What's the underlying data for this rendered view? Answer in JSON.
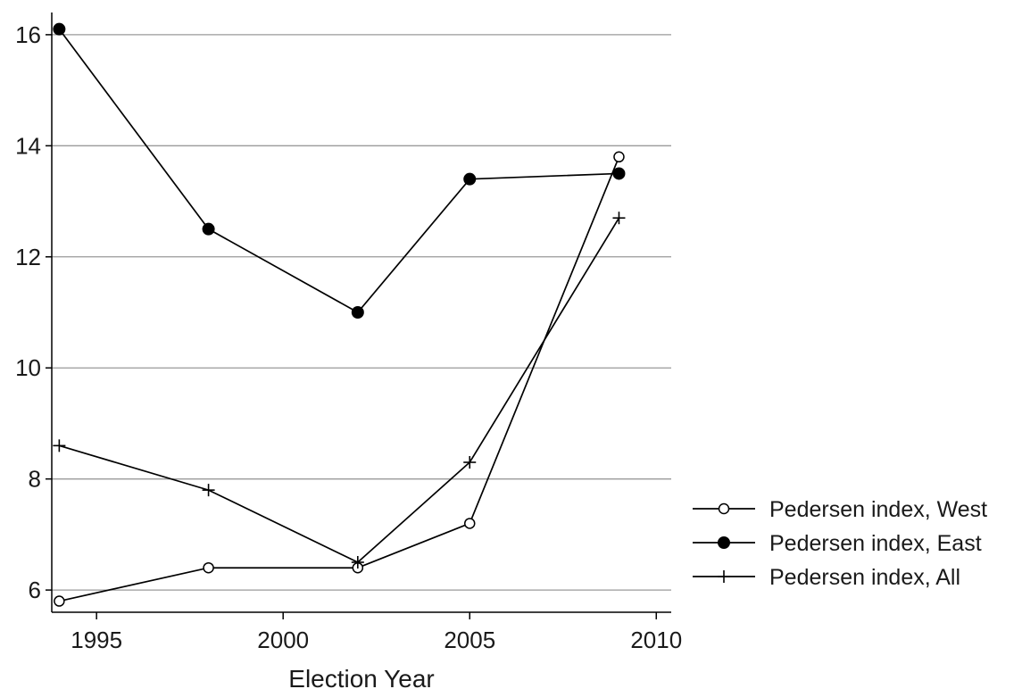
{
  "chart_data": {
    "type": "line",
    "title": "",
    "xlabel": "Election Year",
    "ylabel": "",
    "xlim": [
      1993.8,
      2010.4
    ],
    "ylim": [
      5.6,
      16.4
    ],
    "xticks": [
      1995,
      2000,
      2005,
      2010
    ],
    "yticks": [
      6,
      8,
      10,
      12,
      14,
      16
    ],
    "xtick_labels": [
      "1995",
      "2000",
      "2005",
      "2010"
    ],
    "ytick_labels": [
      "6",
      "8",
      "10",
      "12",
      "14",
      "16"
    ],
    "grid": "horizontal",
    "legend_position": "right",
    "series": [
      {
        "name": "Pedersen index, West",
        "marker": "hollow-circle",
        "color": "#000000",
        "x": [
          1994,
          1998,
          2002,
          2005,
          2009
        ],
        "y": [
          5.8,
          6.4,
          6.4,
          7.2,
          13.8
        ]
      },
      {
        "name": "Pedersen index, East",
        "marker": "filled-circle",
        "color": "#000000",
        "x": [
          1994,
          1998,
          2002,
          2005,
          2009
        ],
        "y": [
          16.1,
          12.5,
          11.0,
          13.4,
          13.5
        ]
      },
      {
        "name": "Pedersen index, All",
        "marker": "plus",
        "color": "#000000",
        "x": [
          1994,
          1998,
          2002,
          2005,
          2009
        ],
        "y": [
          8.6,
          7.8,
          6.5,
          8.3,
          12.7
        ]
      }
    ]
  }
}
